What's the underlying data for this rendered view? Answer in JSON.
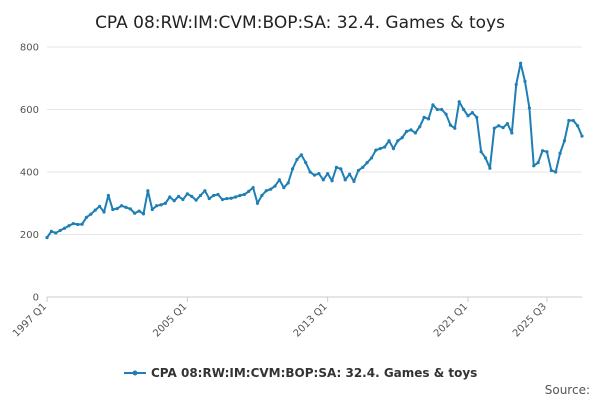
{
  "chart_data": {
    "type": "line",
    "title": "CPA 08:RW:IM:CVM:BOP:SA: 32.4. Games & toys",
    "xlabel": "",
    "ylabel": "",
    "ylim": [
      0,
      800
    ],
    "y_ticks": [
      0,
      200,
      400,
      600,
      800
    ],
    "x_ticks": [
      "1997 Q1",
      "2005 Q1",
      "2013 Q1",
      "2021 Q1",
      "2025 Q3"
    ],
    "grid": true,
    "legend_position": "bottom",
    "series": [
      {
        "name": "CPA 08:RW:IM:CVM:BOP:SA: 32.4. Games & toys",
        "color": "#1f7fb4",
        "x_start": "1997 Q1",
        "frequency": "quarterly",
        "values": [
          190,
          210,
          205,
          213,
          220,
          228,
          235,
          232,
          233,
          255,
          265,
          278,
          290,
          272,
          325,
          280,
          283,
          292,
          287,
          282,
          268,
          275,
          266,
          340,
          280,
          292,
          295,
          300,
          320,
          308,
          322,
          312,
          330,
          322,
          310,
          325,
          340,
          315,
          325,
          328,
          312,
          315,
          316,
          320,
          325,
          328,
          338,
          350,
          300,
          325,
          340,
          345,
          355,
          375,
          350,
          365,
          410,
          440,
          455,
          430,
          400,
          390,
          395,
          375,
          395,
          372,
          415,
          410,
          375,
          393,
          370,
          405,
          415,
          430,
          445,
          470,
          475,
          480,
          500,
          475,
          500,
          510,
          530,
          535,
          525,
          545,
          575,
          570,
          615,
          600,
          600,
          585,
          550,
          540,
          625,
          600,
          580,
          590,
          575,
          465,
          445,
          412,
          540,
          548,
          542,
          555,
          525,
          680,
          748,
          690,
          605,
          420,
          430,
          468,
          465,
          405,
          400,
          460,
          500,
          565,
          565,
          548,
          515
        ]
      }
    ]
  },
  "legend": {
    "label": "CPA 08:RW:IM:CVM:BOP:SA: 32.4. Games & toys"
  },
  "source_label": "Source:"
}
